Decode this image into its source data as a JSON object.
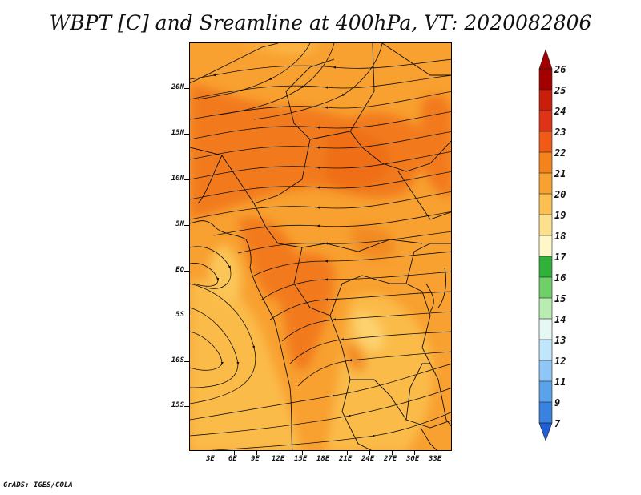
{
  "title": "WBPT [C] and Sreamline at 400hPa, VT: 2020082806",
  "footer": "GrADS: IGES/COLA",
  "map": {
    "region": "Central Africa",
    "field": "Wet bulb potential temperature",
    "units": "C",
    "level": "400hPa",
    "valid_time": "2020082806"
  },
  "y_axis": {
    "labels": [
      "20N",
      "15N",
      "10N",
      "5N",
      "EQ",
      "5S",
      "10S",
      "15S"
    ],
    "values": [
      20,
      15,
      10,
      5,
      0,
      -5,
      -10,
      -15
    ]
  },
  "x_axis": {
    "labels": [
      "3E",
      "6E",
      "9E",
      "12E",
      "15E",
      "18E",
      "21E",
      "24E",
      "27E",
      "30E",
      "33E"
    ],
    "values": [
      3,
      6,
      9,
      12,
      15,
      18,
      21,
      24,
      27,
      30,
      33
    ]
  },
  "colorbar": {
    "labels": [
      "26",
      "25",
      "24",
      "23",
      "22",
      "21",
      "20",
      "19",
      "18",
      "17",
      "16",
      "15",
      "14",
      "13",
      "12",
      "11",
      "9",
      "7"
    ],
    "colors": [
      "#a50000",
      "#c81e0a",
      "#e03214",
      "#f05a14",
      "#f6821c",
      "#f8a030",
      "#fbc050",
      "#fde08c",
      "#fff7c8",
      "#2fb13a",
      "#6fd06a",
      "#b8ecb0",
      "#e6f8f4",
      "#bfe6fa",
      "#8ec6f5",
      "#5aa2ec",
      "#3a82e2",
      "#1e5fd6"
    ]
  }
}
